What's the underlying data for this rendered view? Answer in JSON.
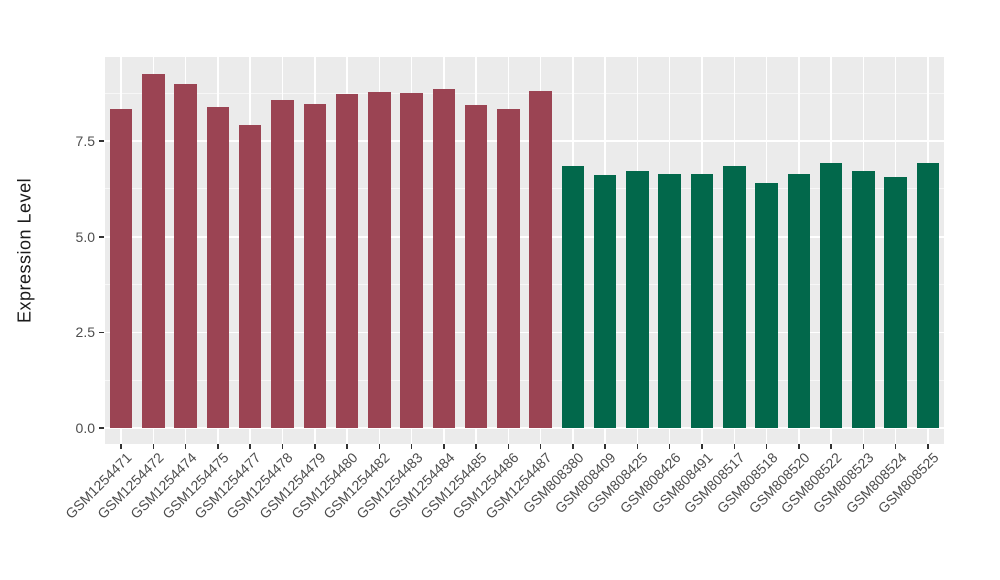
{
  "chart_data": {
    "type": "bar",
    "title": "",
    "xlabel": "",
    "ylabel": "Expression Level",
    "ylim": [
      0,
      9.7
    ],
    "grid": "on",
    "legend": "none",
    "panel_bg": "#EBEBEB",
    "grid_color": "#FFFFFF",
    "tick_mark_color": "#333333",
    "axis_text_color": "#4D4D4D",
    "axis_title_color": "#1a1a1a",
    "group_colors": [
      "#9B4453",
      "#02684B"
    ],
    "yticks": [
      {
        "label": "0.0",
        "value": 0.0
      },
      {
        "label": "2.5",
        "value": 2.5
      },
      {
        "label": "5.0",
        "value": 5.0
      },
      {
        "label": "7.5",
        "value": 7.5
      }
    ],
    "minor_gridlines": [
      1.25,
      3.75,
      6.25,
      8.75
    ],
    "categories": [
      "GSM1254471",
      "GSM1254472",
      "GSM1254474",
      "GSM1254475",
      "GSM1254477",
      "GSM1254478",
      "GSM1254479",
      "GSM1254480",
      "GSM1254482",
      "GSM1254483",
      "GSM1254484",
      "GSM1254485",
      "GSM1254486",
      "GSM1254487",
      "GSM808380",
      "GSM808409",
      "GSM808425",
      "GSM808426",
      "GSM808491",
      "GSM808517",
      "GSM808518",
      "GSM808520",
      "GSM808522",
      "GSM808523",
      "GSM808524",
      "GSM808525"
    ],
    "values": [
      8.35,
      9.25,
      9.0,
      8.4,
      7.93,
      8.57,
      8.47,
      8.72,
      8.78,
      8.75,
      8.87,
      8.45,
      8.34,
      8.81,
      6.85,
      6.61,
      6.72,
      6.64,
      6.65,
      6.85,
      6.41,
      6.65,
      6.92,
      6.71,
      6.55,
      6.94
    ],
    "bar_groups": [
      0,
      0,
      0,
      0,
      0,
      0,
      0,
      0,
      0,
      0,
      0,
      0,
      0,
      0,
      1,
      1,
      1,
      1,
      1,
      1,
      1,
      1,
      1,
      1,
      1,
      1
    ]
  }
}
